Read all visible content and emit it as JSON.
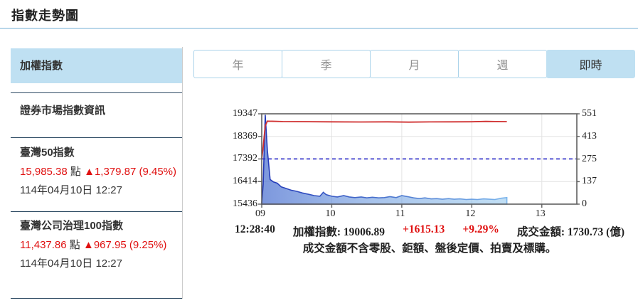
{
  "page": {
    "title": "指數走勢圖"
  },
  "sidebar": {
    "selected_item": "加權指數",
    "market_info": "證券市場指數資訊",
    "indices": [
      {
        "name": "臺灣50指數",
        "value": "15,985.38",
        "unit": "點",
        "change": "▲1,379.87 (9.45%)",
        "date": "114年04月10日 12:27"
      },
      {
        "name": "臺灣公司治理100指數",
        "value": "11,437.86",
        "unit": "點",
        "change": "▲967.95 (9.25%)",
        "date": "114年04月10日 12:27"
      }
    ]
  },
  "tabs": {
    "items": [
      {
        "label": "年"
      },
      {
        "label": "季"
      },
      {
        "label": "月"
      },
      {
        "label": "週"
      },
      {
        "label": "即時"
      }
    ],
    "selected_label": "即時"
  },
  "status": {
    "time": "12:28:40",
    "index_label": "加權指數:",
    "index_value": "19006.89",
    "change": "+1615.13",
    "change_pct": "+9.29%",
    "amount_label": "成交金額:",
    "amount_value": "1730.73 (億)",
    "note": "成交金額不含零股、鉅額、盤後定價、拍賣及標購。"
  },
  "colors": {
    "accent_blue_bg": "#bfe0f2",
    "divider_dark": "#2d4a63",
    "red_text": "#e01010",
    "price_line": "#d03030",
    "prev_close_line": "#2929c8",
    "grid": "#e2e2e2",
    "plot_border": "#5f5f5f"
  },
  "chart_data": {
    "type": "area",
    "title": "加權指數即時走勢",
    "x_range": [
      9.0,
      13.5
    ],
    "x_ticks": [
      "09",
      "10",
      "11",
      "12",
      "13"
    ],
    "x_tick_values": [
      9,
      10,
      11,
      12,
      13
    ],
    "price_axis": {
      "side": "left",
      "min": 15436,
      "max": 19347,
      "ticks": [
        19347,
        18369,
        17392,
        16414,
        15436
      ]
    },
    "volume_axis": {
      "side": "right",
      "min": 0,
      "max": 551,
      "ticks": [
        551,
        413,
        275,
        137,
        0
      ]
    },
    "prev_close": 17392,
    "grid": true,
    "series": [
      {
        "name": "加權指數",
        "type": "line",
        "axis": "price",
        "color": "#d03030",
        "x": [
          9.0,
          9.02,
          9.05,
          9.08,
          9.3,
          9.5,
          10.0,
          10.4,
          10.8,
          11.1,
          11.4,
          12.0,
          12.2,
          12.35,
          12.5
        ],
        "y": [
          17392,
          17900,
          18820,
          19030,
          19012,
          19008,
          18998,
          18992,
          19000,
          18988,
          18996,
          19002,
          19018,
          19010,
          19006.89
        ]
      },
      {
        "name": "成交金額",
        "type": "area",
        "axis": "volume",
        "color": "#5b7fd4",
        "x": [
          9.0,
          9.02,
          9.05,
          9.08,
          9.12,
          9.17,
          9.22,
          9.28,
          9.33,
          9.42,
          9.5,
          9.58,
          9.67,
          9.75,
          9.83,
          9.88,
          9.92,
          10.0,
          10.08,
          10.17,
          10.25,
          10.33,
          10.42,
          10.5,
          10.58,
          10.67,
          10.75,
          10.83,
          10.92,
          11.0,
          11.08,
          11.17,
          11.25,
          11.33,
          11.42,
          11.5,
          11.58,
          11.67,
          11.75,
          11.83,
          11.92,
          12.0,
          12.08,
          12.17,
          12.25,
          12.33,
          12.42,
          12.5
        ],
        "y": [
          5,
          120,
          545,
          330,
          150,
          135,
          128,
          105,
          98,
          85,
          78,
          68,
          60,
          52,
          48,
          72,
          58,
          48,
          44,
          52,
          44,
          40,
          44,
          38,
          42,
          38,
          40,
          46,
          40,
          52,
          46,
          38,
          34,
          38,
          32,
          34,
          30,
          34,
          30,
          32,
          28,
          30,
          28,
          32,
          30,
          28,
          36,
          40
        ]
      }
    ]
  }
}
